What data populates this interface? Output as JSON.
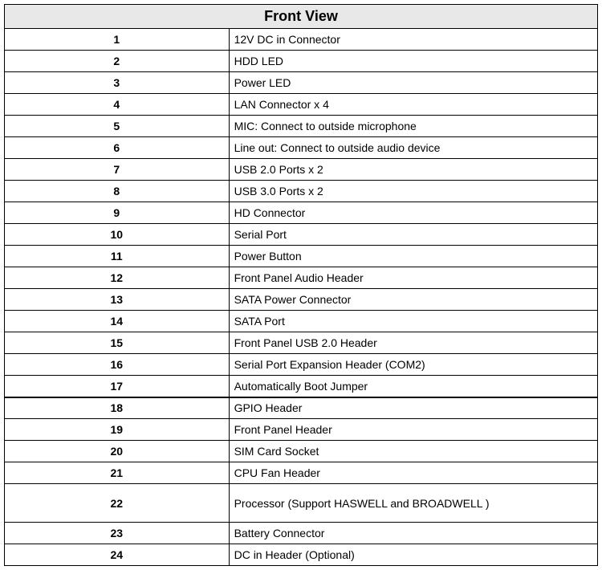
{
  "table": {
    "title": "Front View",
    "header_bg": "#e8e8e8",
    "border_color": "#000000",
    "title_fontsize": 18,
    "cell_fontsize": 14,
    "num_col_width": 280,
    "desc_col_width": 460,
    "rows": [
      {
        "num": "1",
        "desc": "12V DC in Connector"
      },
      {
        "num": "2",
        "desc": "HDD LED"
      },
      {
        "num": "3",
        "desc": "Power LED"
      },
      {
        "num": "4",
        "desc": "LAN Connector x 4"
      },
      {
        "num": "5",
        "desc": "MIC: Connect to outside microphone"
      },
      {
        "num": "6",
        "desc": "Line out: Connect to outside audio device"
      },
      {
        "num": "7",
        "desc": "USB 2.0 Ports x 2"
      },
      {
        "num": "8",
        "desc": "USB 3.0 Ports x 2"
      },
      {
        "num": "9",
        "desc": "HD Connector"
      },
      {
        "num": "10",
        "desc": "Serial Port"
      },
      {
        "num": "11",
        "desc": "Power Button"
      },
      {
        "num": "12",
        "desc": "Front Panel Audio Header"
      },
      {
        "num": "13",
        "desc": "SATA Power Connector"
      },
      {
        "num": "14",
        "desc": "SATA Port"
      },
      {
        "num": "15",
        "desc": "Front Panel USB 2.0 Header"
      },
      {
        "num": "16",
        "desc": "Serial Port Expansion Header (COM2)"
      },
      {
        "num": "17",
        "desc": "Automatically Boot Jumper"
      },
      {
        "num": "18",
        "desc": "GPIO Header",
        "thick_top": true
      },
      {
        "num": "19",
        "desc": "Front Panel Header"
      },
      {
        "num": "20",
        "desc": "SIM Card Socket"
      },
      {
        "num": "21",
        "desc": "CPU Fan Header"
      },
      {
        "num": "22",
        "desc": "Processor (Support HASWELL and BROADWELL )",
        "tall": true
      },
      {
        "num": "23",
        "desc": "Battery Connector"
      },
      {
        "num": "24",
        "desc": "DC in Header (Optional)"
      }
    ]
  }
}
